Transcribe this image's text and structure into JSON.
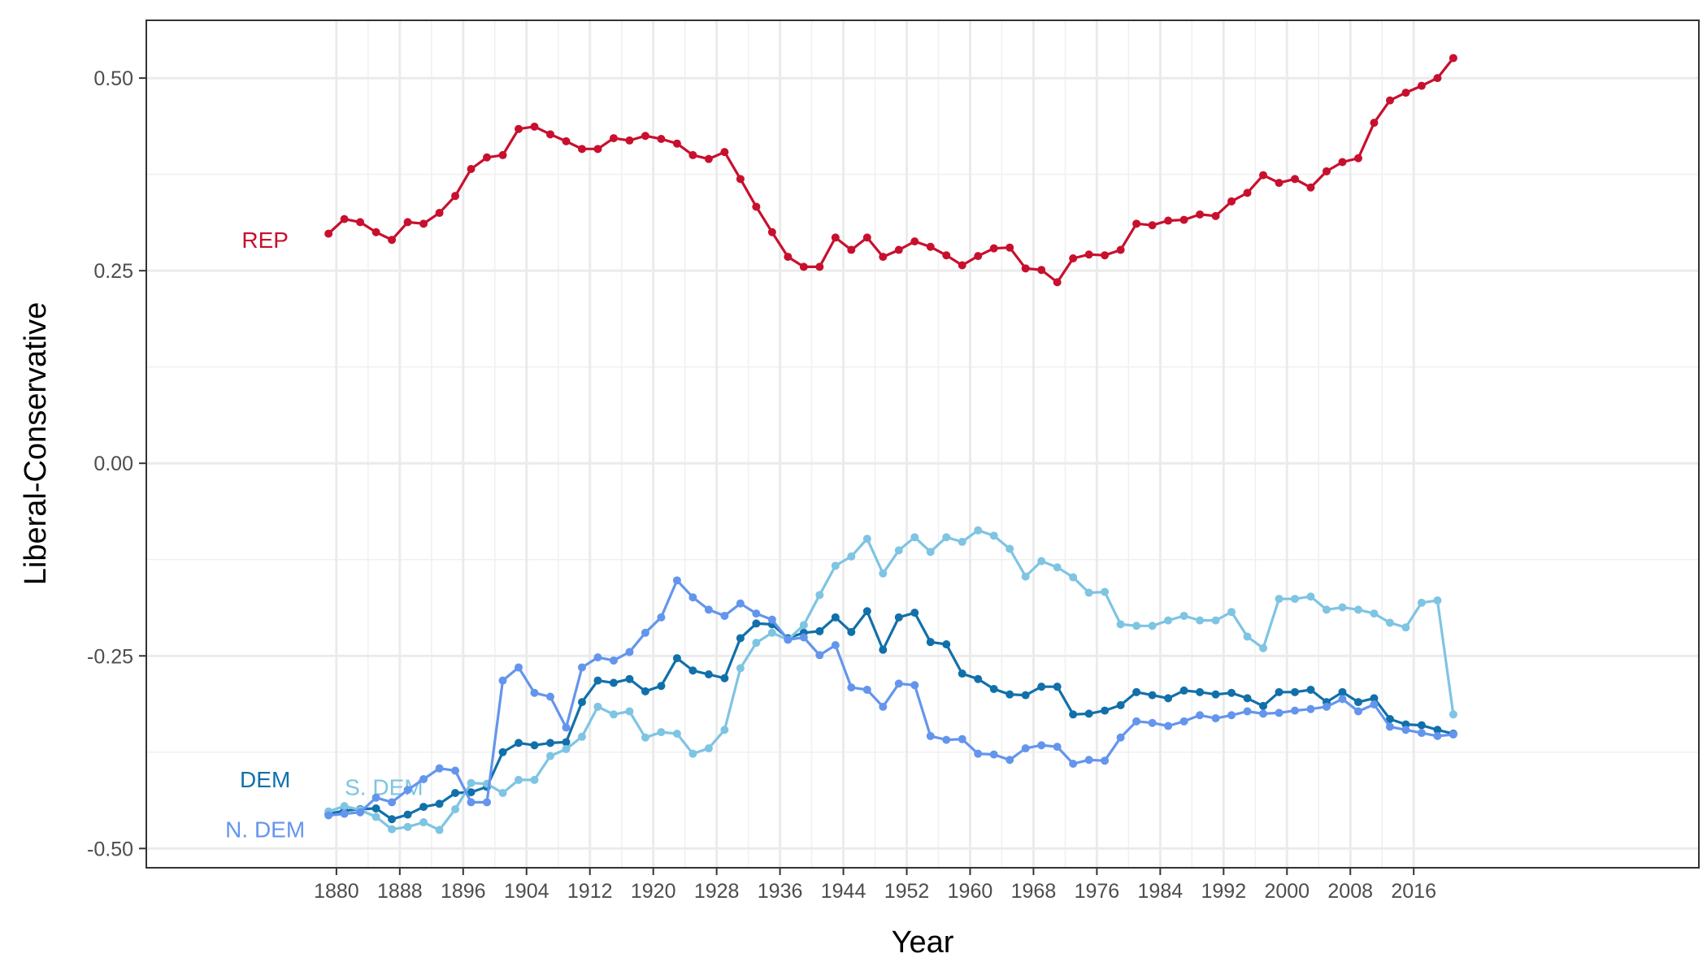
{
  "chart_data": {
    "type": "line",
    "xlabel": "Year",
    "ylabel": "Liberal-Conservative",
    "xlim": [
      1856,
      2052
    ],
    "ylim": [
      -0.525,
      0.575
    ],
    "xticks": [
      1880,
      1888,
      1896,
      1904,
      1912,
      1920,
      1928,
      1936,
      1944,
      1952,
      1960,
      1968,
      1976,
      1984,
      1992,
      2000,
      2008,
      2016
    ],
    "yticks": [
      {
        "value": 0.5,
        "label": "0.50"
      },
      {
        "value": 0.25,
        "label": "0.25"
      },
      {
        "value": 0.0,
        "label": "0.00"
      },
      {
        "value": -0.25,
        "label": "-0.25"
      },
      {
        "value": -0.5,
        "label": "-0.50"
      }
    ],
    "grid": true,
    "legend": "none",
    "x": [
      1879,
      1881,
      1883,
      1885,
      1887,
      1889,
      1891,
      1893,
      1895,
      1897,
      1899,
      1901,
      1903,
      1905,
      1907,
      1909,
      1911,
      1913,
      1915,
      1917,
      1919,
      1921,
      1923,
      1925,
      1927,
      1929,
      1931,
      1933,
      1935,
      1937,
      1939,
      1941,
      1943,
      1945,
      1947,
      1949,
      1951,
      1953,
      1955,
      1957,
      1959,
      1961,
      1963,
      1965,
      1967,
      1969,
      1971,
      1973,
      1975,
      1977,
      1979,
      1981,
      1983,
      1985,
      1987,
      1989,
      1991,
      1993,
      1995,
      1997,
      1999,
      2001,
      2003,
      2005,
      2007,
      2009,
      2011,
      2013,
      2015,
      2017,
      2019,
      2021
    ],
    "series": [
      {
        "name": "REP",
        "color": "#c8102e",
        "label_year": 1871,
        "label_value": 0.29,
        "values": [
          0.298,
          0.317,
          0.313,
          0.3,
          0.29,
          0.313,
          0.311,
          0.325,
          0.347,
          0.382,
          0.397,
          0.4,
          0.434,
          0.437,
          0.427,
          0.418,
          0.408,
          0.408,
          0.422,
          0.419,
          0.425,
          0.421,
          0.415,
          0.4,
          0.395,
          0.404,
          0.369,
          0.333,
          0.3,
          0.268,
          0.255,
          0.255,
          0.293,
          0.277,
          0.293,
          0.268,
          0.277,
          0.288,
          0.281,
          0.27,
          0.257,
          0.269,
          0.279,
          0.28,
          0.253,
          0.251,
          0.235,
          0.266,
          0.271,
          0.27,
          0.277,
          0.311,
          0.309,
          0.315,
          0.316,
          0.323,
          0.321,
          0.34,
          0.351,
          0.374,
          0.364,
          0.369,
          0.358,
          0.379,
          0.391,
          0.396,
          0.442,
          0.471,
          0.481,
          0.49,
          0.5,
          0.526
        ]
      },
      {
        "name": "DEM",
        "color": "#1170aa",
        "label_year": 1871,
        "label_value": -0.41,
        "values": [
          -0.455,
          -0.451,
          -0.449,
          -0.448,
          -0.462,
          -0.456,
          -0.446,
          -0.442,
          -0.428,
          -0.427,
          -0.42,
          -0.375,
          -0.363,
          -0.366,
          -0.363,
          -0.362,
          -0.31,
          -0.282,
          -0.285,
          -0.28,
          -0.296,
          -0.289,
          -0.253,
          -0.269,
          -0.274,
          -0.279,
          -0.227,
          -0.208,
          -0.209,
          -0.227,
          -0.22,
          -0.218,
          -0.2,
          -0.219,
          -0.192,
          -0.242,
          -0.2,
          -0.194,
          -0.232,
          -0.235,
          -0.273,
          -0.28,
          -0.293,
          -0.3,
          -0.301,
          -0.29,
          -0.29,
          -0.326,
          -0.325,
          -0.321,
          -0.314,
          -0.297,
          -0.301,
          -0.305,
          -0.295,
          -0.297,
          -0.3,
          -0.298,
          -0.305,
          -0.315,
          -0.297,
          -0.297,
          -0.294,
          -0.31,
          -0.297,
          -0.31,
          -0.305,
          -0.332,
          -0.339,
          -0.34,
          -0.346,
          -0.351
        ]
      },
      {
        "name": "S. DEM",
        "color": "#7ec4e3",
        "label_year": 1886,
        "label_value": -0.42,
        "values": [
          -0.452,
          -0.445,
          -0.45,
          -0.459,
          -0.475,
          -0.472,
          -0.466,
          -0.476,
          -0.449,
          -0.415,
          -0.416,
          -0.428,
          -0.411,
          -0.411,
          -0.38,
          -0.371,
          -0.355,
          -0.316,
          -0.326,
          -0.322,
          -0.356,
          -0.349,
          -0.351,
          -0.377,
          -0.37,
          -0.346,
          -0.266,
          -0.233,
          -0.22,
          -0.229,
          -0.21,
          -0.171,
          -0.133,
          -0.121,
          -0.098,
          -0.143,
          -0.113,
          -0.096,
          -0.115,
          -0.096,
          -0.102,
          -0.087,
          -0.094,
          -0.111,
          -0.147,
          -0.127,
          -0.135,
          -0.148,
          -0.168,
          -0.167,
          -0.209,
          -0.211,
          -0.211,
          -0.204,
          -0.198,
          -0.204,
          -0.204,
          -0.193,
          -0.225,
          -0.24,
          -0.176,
          -0.176,
          -0.173,
          -0.19,
          -0.187,
          -0.19,
          -0.195,
          -0.207,
          -0.213,
          -0.181,
          -0.178,
          -0.326
        ]
      },
      {
        "name": "N. DEM",
        "color": "#6495ed",
        "label_year": 1871,
        "label_value": -0.475,
        "values": [
          -0.457,
          -0.455,
          -0.453,
          -0.434,
          -0.44,
          -0.424,
          -0.41,
          -0.396,
          -0.399,
          -0.44,
          -0.44,
          -0.282,
          -0.265,
          -0.298,
          -0.303,
          -0.343,
          -0.265,
          -0.252,
          -0.256,
          -0.245,
          -0.22,
          -0.2,
          -0.152,
          -0.174,
          -0.19,
          -0.198,
          -0.182,
          -0.195,
          -0.203,
          -0.229,
          -0.226,
          -0.249,
          -0.236,
          -0.291,
          -0.294,
          -0.316,
          -0.286,
          -0.288,
          -0.354,
          -0.359,
          -0.358,
          -0.377,
          -0.378,
          -0.385,
          -0.37,
          -0.366,
          -0.368,
          -0.39,
          -0.385,
          -0.386,
          -0.356,
          -0.335,
          -0.337,
          -0.341,
          -0.335,
          -0.327,
          -0.331,
          -0.327,
          -0.322,
          -0.325,
          -0.324,
          -0.321,
          -0.319,
          -0.316,
          -0.306,
          -0.322,
          -0.313,
          -0.342,
          -0.346,
          -0.35,
          -0.354,
          -0.352
        ]
      }
    ]
  }
}
